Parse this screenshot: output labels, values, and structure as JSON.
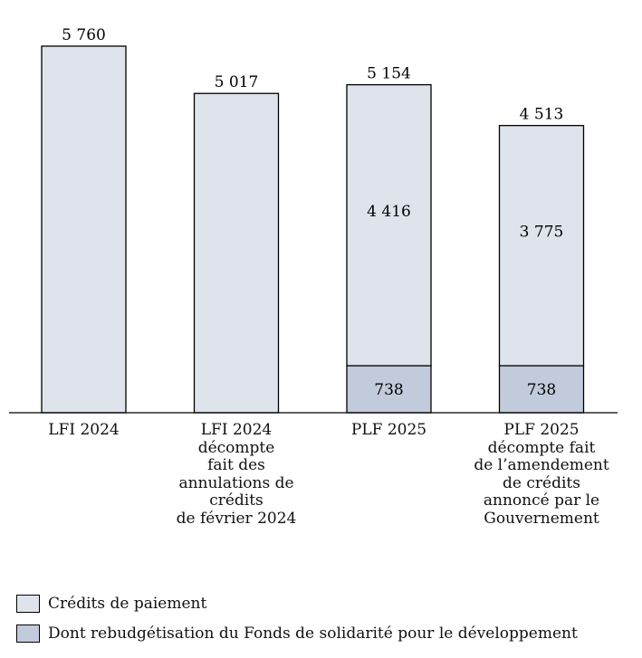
{
  "chart_data": {
    "type": "bar",
    "stacked": true,
    "categories": [
      "LFI 2024",
      "LFI 2024\ndécompte\nfait des\nannulations de\ncrédits\nde février 2024",
      "PLF 2025",
      "PLF 2025\ndécompte fait\nde l’amendement\nde crédits\nannoncé par le\nGouvernement"
    ],
    "totals": [
      5760,
      5017,
      5154,
      4513
    ],
    "total_labels": [
      "5 760",
      "5 017",
      "5 154",
      "4 513"
    ],
    "series": [
      {
        "name": "Dont rebudgétisation du Fonds de solidarité pour le développement",
        "values": [
          0,
          0,
          738,
          738
        ],
        "labels": [
          "",
          "",
          "738",
          "738"
        ]
      },
      {
        "name": "Crédits de paiement",
        "values": [
          5760,
          5017,
          4416,
          3775
        ],
        "labels": [
          "",
          "",
          "4 416",
          "3 775"
        ]
      }
    ],
    "ylim": [
      0,
      5760
    ],
    "grid": false,
    "legend_placement": "bottom-left",
    "colors": {
      "credits": "#dee3ec",
      "fsd": "#c2cbdc",
      "edge": "#000000"
    }
  },
  "legend": [
    {
      "label": "Crédits de paiement",
      "color": "#dee3ec"
    },
    {
      "label": "Dont rebudgétisation du Fonds de solidarité pour le développement",
      "color": "#c2cbdc"
    }
  ]
}
